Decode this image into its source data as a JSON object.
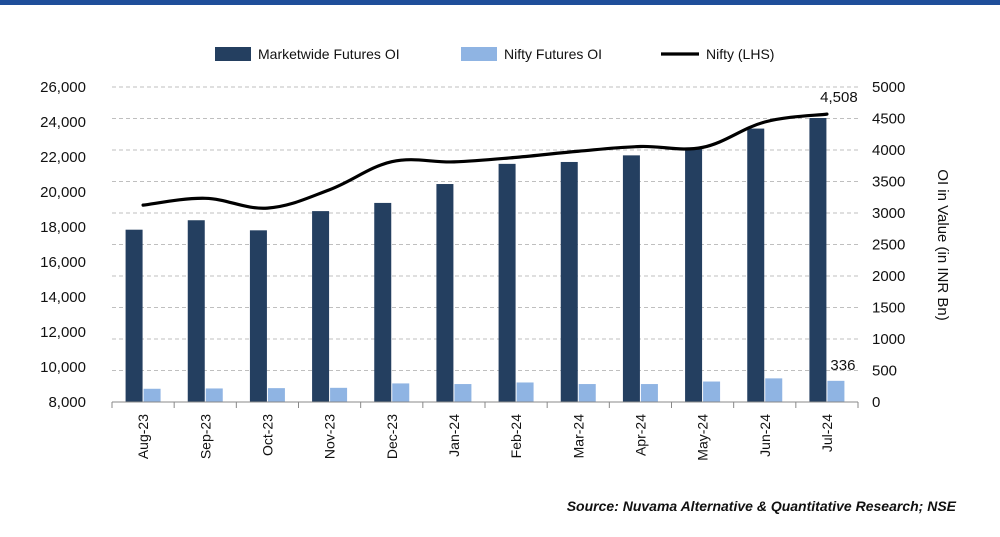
{
  "colors": {
    "marketwide_bar": "#243f60",
    "nifty_bar": "#8fb4e3",
    "nifty_line": "#000000",
    "title_strip": "#1f4e9a",
    "grid": "#bfbfbf"
  },
  "source": "Source: Nuvama Alternative & Quantitative Research; NSE",
  "chart_data": {
    "type": "bar",
    "categories": [
      "Aug-23",
      "Sep-23",
      "Oct-23",
      "Nov-23",
      "Dec-23",
      "Jan-24",
      "Feb-24",
      "Mar-24",
      "Apr-24",
      "May-24",
      "Jun-24",
      "Jul-24"
    ],
    "series": [
      {
        "name": "Marketwide Futures OI",
        "type": "bar",
        "axis": "right",
        "values": [
          2735,
          2885,
          2725,
          3030,
          3160,
          3460,
          3780,
          3810,
          3915,
          4040,
          4340,
          4508
        ]
      },
      {
        "name": "Nifty Futures OI",
        "type": "bar",
        "axis": "right",
        "values": [
          210,
          215,
          220,
          225,
          295,
          285,
          310,
          285,
          285,
          325,
          375,
          336
        ]
      },
      {
        "name": "Nifty (LHS)",
        "type": "line",
        "axis": "left",
        "values": [
          19250,
          19640,
          19080,
          20130,
          21730,
          21720,
          21980,
          22330,
          22600,
          22550,
          24000,
          24450
        ]
      }
    ],
    "data_labels": [
      {
        "series": 0,
        "index": 11,
        "text": "4,508"
      },
      {
        "series": 1,
        "index": 11,
        "text": "336"
      }
    ],
    "y_left": {
      "ylim": [
        8000,
        26000
      ],
      "ticks": [
        "8,000",
        "10,000",
        "12,000",
        "14,000",
        "16,000",
        "18,000",
        "20,000",
        "22,000",
        "24,000",
        "26,000"
      ]
    },
    "y_right": {
      "ylim": [
        0,
        5000
      ],
      "label": "OI in Value (in INR Bn)",
      "ticks": [
        "0",
        "500",
        "1000",
        "1500",
        "2000",
        "2500",
        "3000",
        "3500",
        "4000",
        "4500",
        "5000"
      ]
    },
    "grid": true,
    "legend": "top-center"
  }
}
